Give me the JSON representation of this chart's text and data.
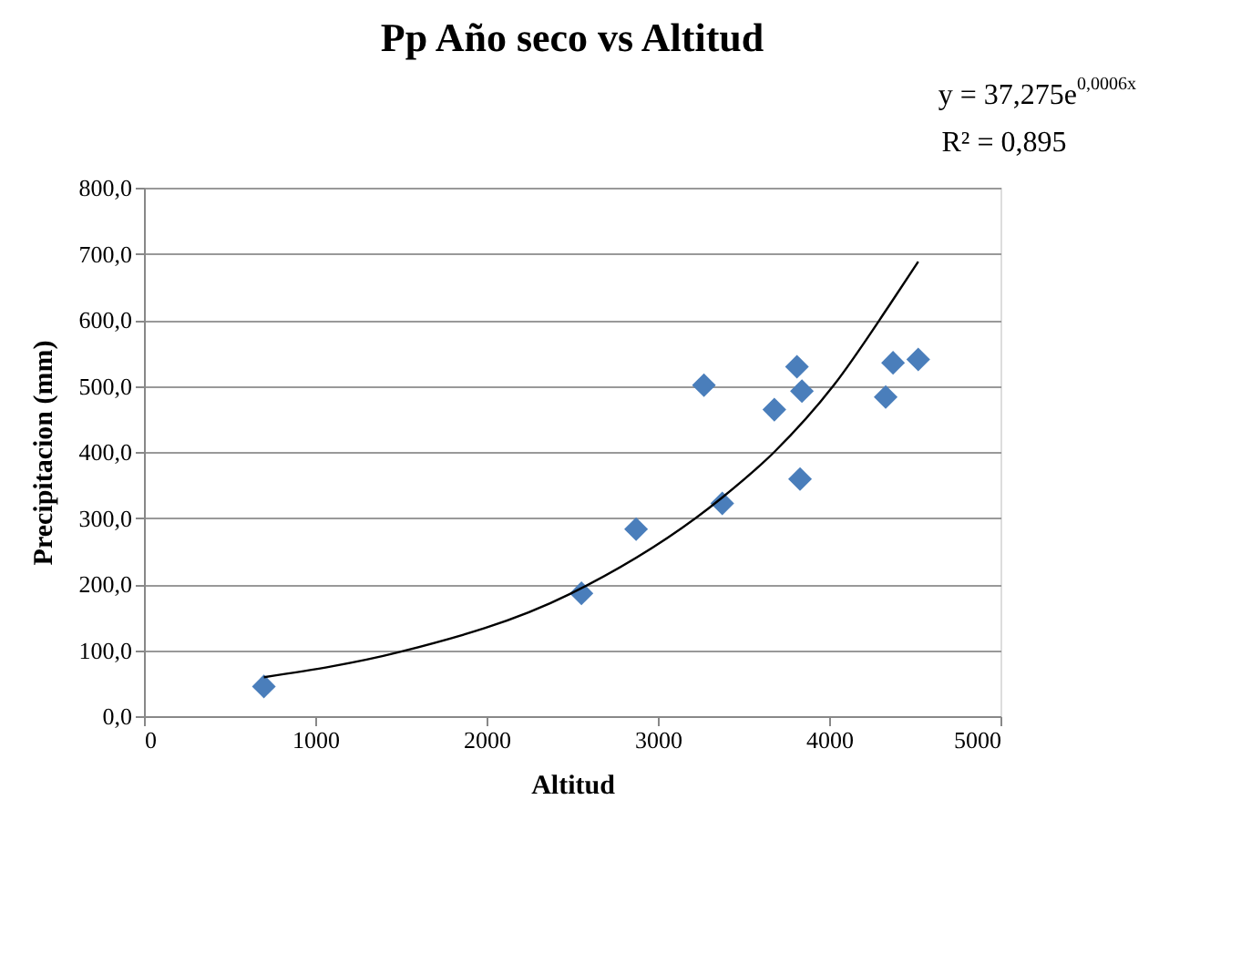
{
  "chart_data": {
    "type": "scatter",
    "title": "Pp Año seco vs Altitud",
    "xlabel": "Altitud",
    "ylabel": "Precipitacion (mm)",
    "annotations": [
      "y = 37,275e$^{0,0006x}$",
      "R² = 0,895"
    ],
    "grid": "y",
    "xlim": [
      0,
      5000
    ],
    "xticks": [
      0,
      1000,
      2000,
      3000,
      4000,
      5000
    ],
    "ylim": [
      0,
      800
    ],
    "yticks": [
      {
        "value": 0,
        "label": "0,0"
      },
      {
        "value": 100,
        "label": "100,0"
      },
      {
        "value": 200,
        "label": "200,0"
      },
      {
        "value": 300,
        "label": "300,0"
      },
      {
        "value": 400,
        "label": "400,0"
      },
      {
        "value": 500,
        "label": "500,0"
      },
      {
        "value": 600,
        "label": "600,0"
      },
      {
        "value": 700,
        "label": "700,0"
      },
      {
        "value": 800,
        "label": "800,0"
      }
    ],
    "series": [
      {
        "marker": "diamond",
        "color": "#4a7ebb",
        "x": [
          700,
          2554,
          2873,
          3269,
          3376,
          3680,
          3812,
          3841,
          3830,
          4330,
          4373,
          4520
        ],
        "values": [
          45,
          186,
          283,
          501,
          322,
          464,
          529,
          492,
          359,
          483,
          535,
          540
        ]
      },
      {
        "type": "line",
        "marker": "none",
        "color": "#000000",
        "x": [
          700,
          1490,
          2487,
          3376,
          3680,
          4027,
          4349,
          4520
        ],
        "values": [
          59,
          97,
          185,
          331,
          400,
          501,
          621,
          688
        ]
      }
    ]
  }
}
